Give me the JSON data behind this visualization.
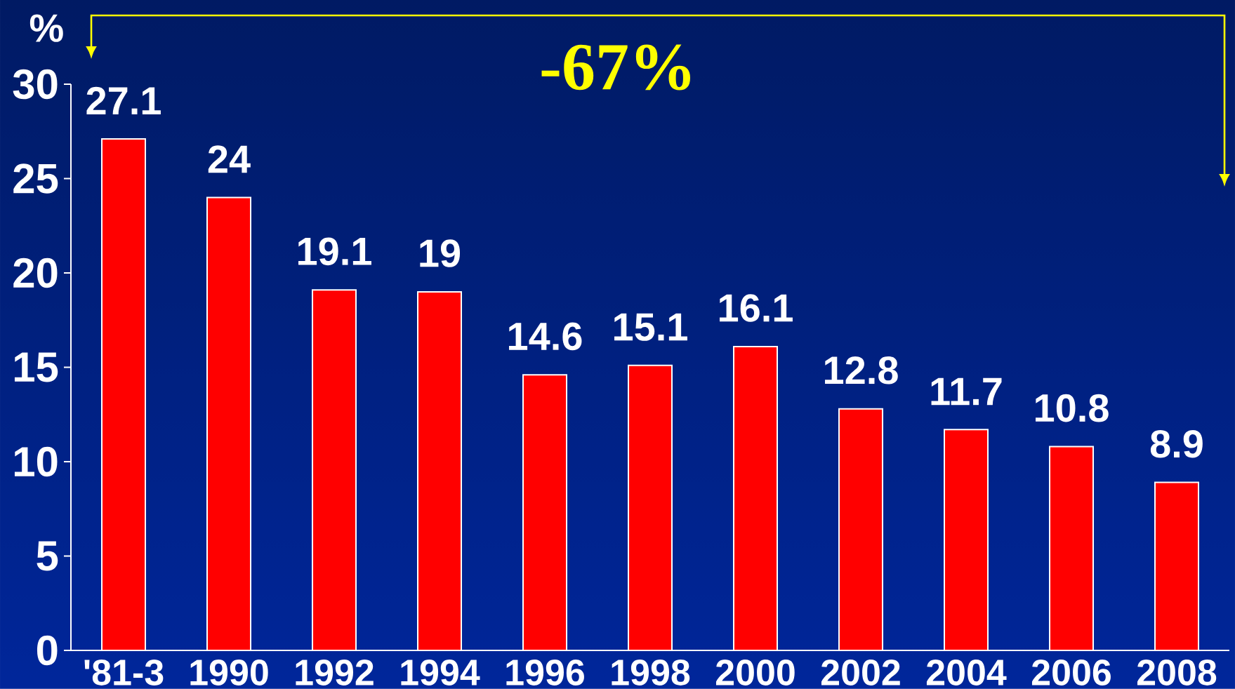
{
  "chart_data": {
    "type": "bar",
    "ylabel": "%",
    "annotations": [
      "-67%"
    ],
    "categories": [
      "'81-3",
      "1990",
      "1992",
      "1994",
      "1996",
      "1998",
      "2000",
      "2002",
      "2004",
      "2006",
      "2008"
    ],
    "values": [
      27.1,
      24,
      19.1,
      19,
      14.6,
      15.1,
      16.1,
      12.8,
      11.7,
      10.8,
      8.9
    ],
    "color": "#ff0000",
    "ylim": [
      0,
      30
    ],
    "yticks": [
      0,
      5,
      10,
      15,
      20,
      25,
      30
    ],
    "data_labels": true
  }
}
